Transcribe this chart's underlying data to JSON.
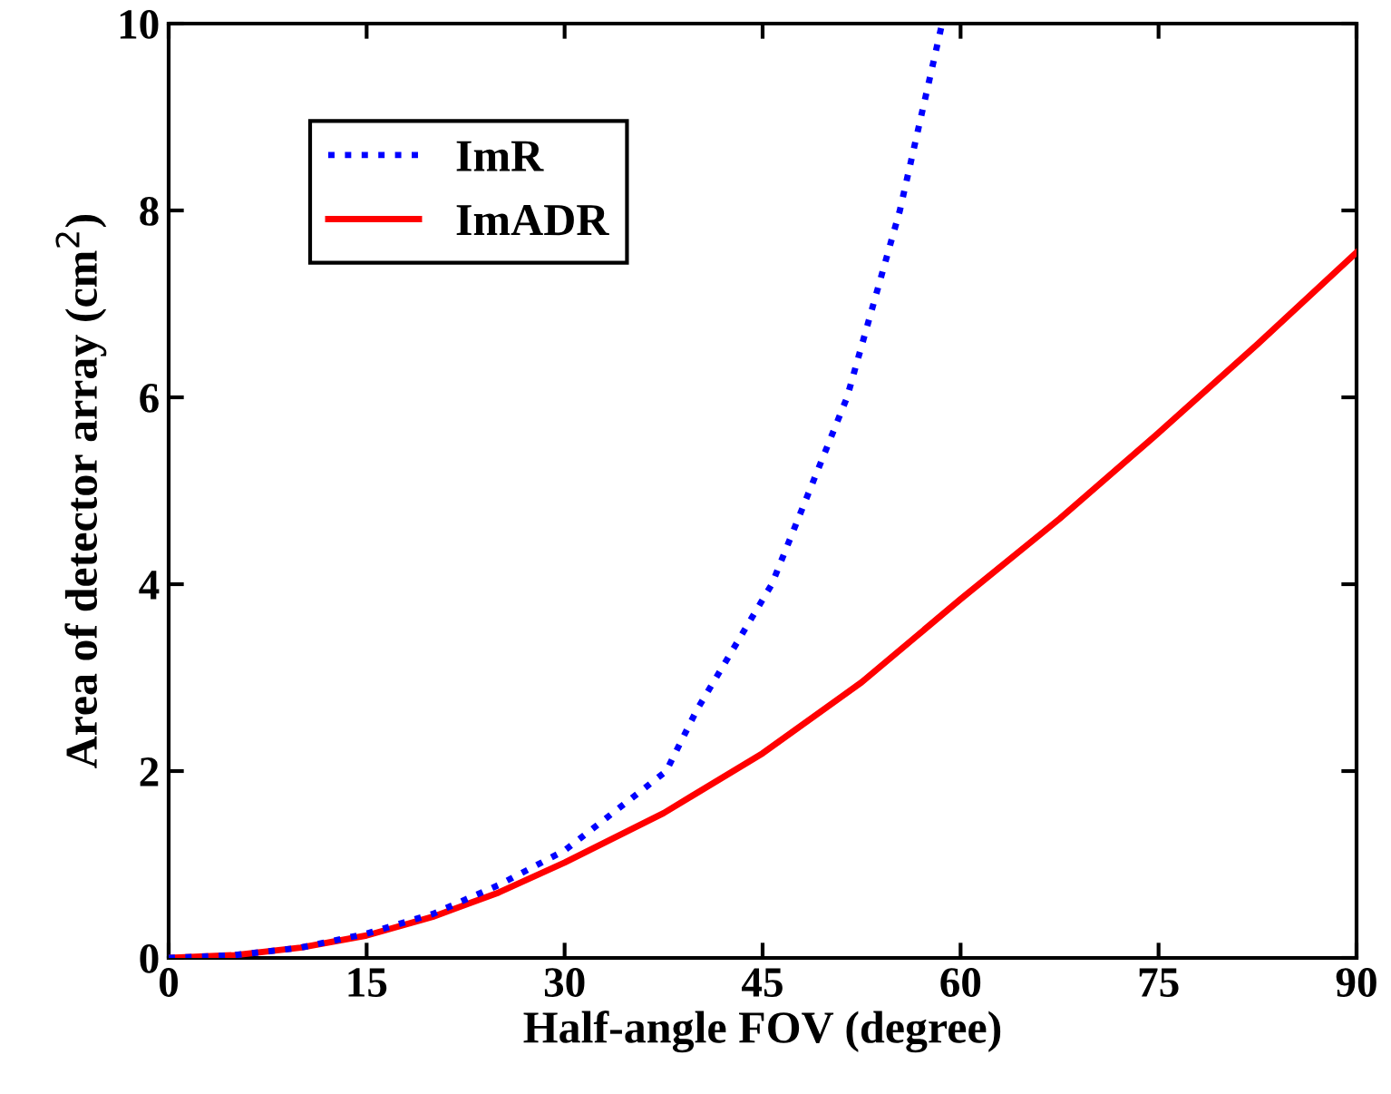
{
  "chart_data": {
    "type": "line",
    "xlabel": "Half-angle FOV (degree)",
    "ylabel": "Area of detector array (cm$^{2}$)",
    "xlim": [
      0,
      90
    ],
    "xticks": [
      0,
      15,
      30,
      45,
      60,
      75,
      90
    ],
    "ylim": [
      0,
      10
    ],
    "yticks": [
      0,
      2,
      4,
      6,
      8,
      10
    ],
    "grid": false,
    "legend": "top left",
    "series": [
      {
        "name": "ImR",
        "color": "#0000ff",
        "line_style": "dotted",
        "x": [
          0,
          5,
          10,
          15,
          20,
          25,
          30,
          35,
          37.7,
          40,
          45.7,
          51.4,
          55.4,
          58.6
        ],
        "values": [
          0,
          0.03,
          0.11,
          0.26,
          0.47,
          0.78,
          1.15,
          1.7,
          2,
          2.65,
          4,
          6,
          8,
          10
        ]
      },
      {
        "name": "ImADR",
        "color": "#ff0000",
        "line_style": "solid",
        "x": [
          0,
          5,
          10,
          15,
          20,
          25,
          30,
          37.5,
          45,
          52.5,
          60,
          67.5,
          75,
          82.5,
          90
        ],
        "values": [
          0,
          0.03,
          0.11,
          0.24,
          0.44,
          0.7,
          1.02,
          1.55,
          2.19,
          2.95,
          3.84,
          4.7,
          5.62,
          6.57,
          7.55
        ]
      }
    ]
  }
}
